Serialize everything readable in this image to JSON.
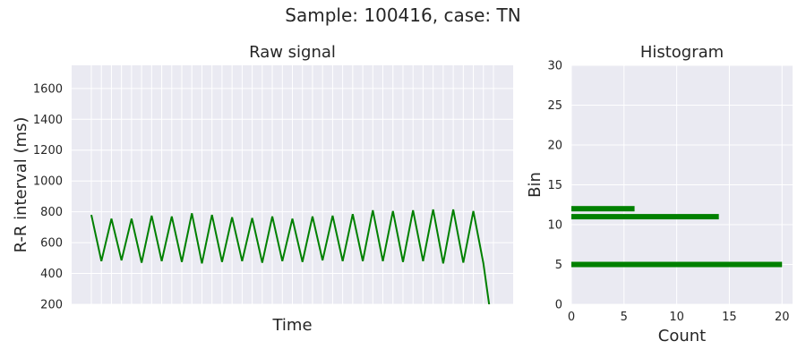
{
  "figure": {
    "suptitle": "Sample: 100416, case: TN",
    "background": "#ffffff",
    "axes_face": "#eaeaf2",
    "grid_color": "#ffffff",
    "line_color": "#008000"
  },
  "chart_data": [
    {
      "type": "line",
      "title": "Raw signal",
      "xlabel": "Time",
      "ylabel": "R-R interval (ms)",
      "ylim": [
        200,
        1750
      ],
      "yticks": [
        "200",
        "400",
        "600",
        "800",
        "1000",
        "1200",
        "1400",
        "1600"
      ],
      "xticks_shown": false,
      "grid": true,
      "x": [
        0,
        1,
        2,
        3,
        4,
        5,
        6,
        7,
        8,
        9,
        10,
        11,
        12,
        13,
        14,
        15,
        16,
        17,
        18,
        19,
        20,
        21,
        22,
        23,
        24,
        25,
        26,
        27,
        28,
        29,
        30,
        31,
        32,
        33,
        34,
        35,
        36,
        37,
        38,
        39,
        40
      ],
      "series": [
        {
          "values": [
            780,
            480,
            755,
            485,
            755,
            470,
            775,
            480,
            770,
            475,
            790,
            465,
            780,
            475,
            765,
            480,
            760,
            470,
            770,
            480,
            755,
            475,
            770,
            485,
            775,
            480,
            785,
            480,
            810,
            480,
            805,
            475,
            810,
            480,
            815,
            465,
            815,
            470,
            805,
            465,
            0
          ],
          "color": "#008000"
        }
      ]
    },
    {
      "type": "bar",
      "orientation": "horizontal",
      "title": "Histogram",
      "xlabel": "Count",
      "ylabel": "Bin",
      "xlim": [
        0,
        21
      ],
      "ylim": [
        0,
        30
      ],
      "xticks": [
        "0",
        "5",
        "10",
        "15",
        "20"
      ],
      "yticks": [
        "0",
        "5",
        "10",
        "15",
        "20",
        "25",
        "30"
      ],
      "grid": true,
      "bins": [
        5,
        11,
        12
      ],
      "counts": [
        20,
        14,
        6
      ],
      "color": "#008000"
    }
  ]
}
